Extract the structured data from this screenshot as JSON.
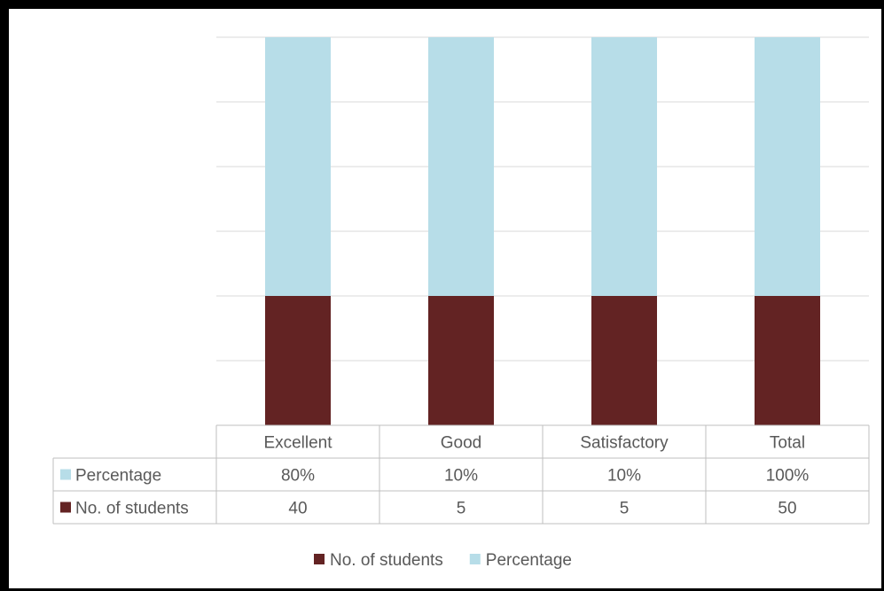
{
  "chart_data": {
    "type": "bar",
    "stacked": "percent",
    "categories": [
      "Excellent",
      "Good",
      "Satisfactory",
      "Total"
    ],
    "series": [
      {
        "name": "No. of students",
        "values": [
          40,
          5,
          5,
          50
        ],
        "labels": [
          "40",
          "5",
          "5",
          "50"
        ],
        "color": "#632323"
      },
      {
        "name": "Percentage",
        "values": [
          80,
          10,
          10,
          100
        ],
        "labels": [
          "80%",
          "10%",
          "10%",
          "100%"
        ],
        "color": "#b7dde8"
      }
    ],
    "data_table": true,
    "grid": true,
    "legend_position": "bottom",
    "title": "",
    "xlabel": "",
    "ylabel": ""
  }
}
